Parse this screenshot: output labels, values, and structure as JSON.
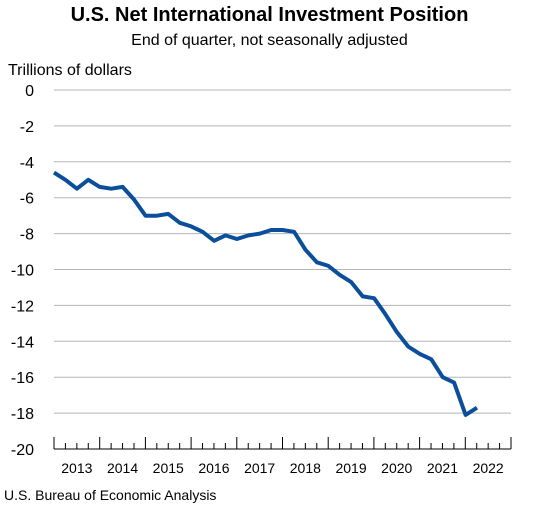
{
  "title": "U.S. Net International Investment Position",
  "subtitle": "End of quarter, not seasonally adjusted",
  "source": "U.S. Bureau of Economic Analysis",
  "colors": {
    "line": "#0b4f9c",
    "grid": "#b5b5b5",
    "axis": "#000000"
  },
  "chart_data": {
    "type": "line",
    "title": "U.S. Net International Investment Position",
    "subtitle": "End of quarter, not seasonally adjusted",
    "ylabel": "Trillions of dollars",
    "xlabel": "",
    "ylim": [
      -20,
      0
    ],
    "y_ticks": [
      0,
      -2,
      -4,
      -6,
      -8,
      -10,
      -12,
      -14,
      -16,
      -18,
      -20
    ],
    "x_ticks": [
      "2013",
      "2014",
      "2015",
      "2016",
      "2017",
      "2018",
      "2019",
      "2020",
      "2021",
      "2022"
    ],
    "grid": true,
    "x": [
      "2012Q4",
      "2013Q1",
      "2013Q2",
      "2013Q3",
      "2013Q4",
      "2014Q1",
      "2014Q2",
      "2014Q3",
      "2014Q4",
      "2015Q1",
      "2015Q2",
      "2015Q3",
      "2015Q4",
      "2016Q1",
      "2016Q2",
      "2016Q3",
      "2016Q4",
      "2017Q1",
      "2017Q2",
      "2017Q3",
      "2017Q4",
      "2018Q1",
      "2018Q2",
      "2018Q3",
      "2018Q4",
      "2019Q1",
      "2019Q2",
      "2019Q3",
      "2019Q4",
      "2020Q1",
      "2020Q2",
      "2020Q3",
      "2020Q4",
      "2021Q1",
      "2021Q2",
      "2021Q3",
      "2021Q4",
      "2022Q1"
    ],
    "series": [
      {
        "values": [
          -4.6,
          -5.0,
          -5.5,
          -5.0,
          -5.4,
          -5.5,
          -5.4,
          -6.1,
          -7.0,
          -7.0,
          -6.9,
          -7.4,
          -7.6,
          -7.9,
          -8.4,
          -8.1,
          -8.3,
          -8.1,
          -8.0,
          -7.8,
          -7.8,
          -7.9,
          -8.9,
          -9.6,
          -9.8,
          -10.3,
          -10.7,
          -11.5,
          -11.6,
          -12.5,
          -13.5,
          -14.3,
          -14.7,
          -15.0,
          -16.0,
          -16.3,
          -18.1,
          -17.7
        ]
      }
    ]
  }
}
